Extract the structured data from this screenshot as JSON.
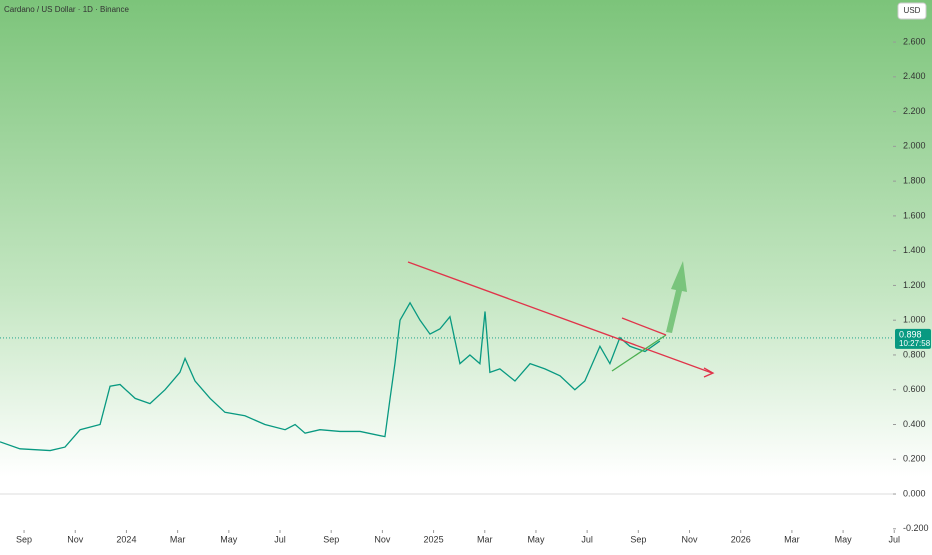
{
  "chart_data": {
    "type": "line",
    "title": "Cardano / US Dollar · 1D · Binance",
    "currency_button": "USD",
    "x": [
      -0.94,
      -0.16,
      1.02,
      1.6,
      2.19,
      2.97,
      3.36,
      3.75,
      4.34,
      4.92,
      5.51,
      6.09,
      6.29,
      6.68,
      7.27,
      7.85,
      8.63,
      9.41,
      10.2,
      10.59,
      10.98,
      11.56,
      12.34,
      13.13,
      14.1,
      14.3,
      14.49,
      14.69,
      15.08,
      15.47,
      15.86,
      16.25,
      16.64,
      17.03,
      17.42,
      17.81,
      18.01,
      18.2,
      18.59,
      19.18,
      19.77,
      20.35,
      20.94,
      21.52,
      21.91,
      22.5,
      22.89,
      23.28,
      23.67,
      24.26,
      24.84
    ],
    "series": [
      {
        "color": "#089981",
        "values": [
          0.3,
          0.26,
          0.25,
          0.27,
          0.37,
          0.4,
          0.62,
          0.63,
          0.55,
          0.52,
          0.6,
          0.7,
          0.78,
          0.65,
          0.55,
          0.47,
          0.45,
          0.4,
          0.37,
          0.4,
          0.35,
          0.37,
          0.36,
          0.36,
          0.33,
          0.55,
          0.75,
          1.0,
          1.1,
          1.0,
          0.92,
          0.95,
          1.02,
          0.75,
          0.8,
          0.75,
          1.05,
          0.7,
          0.72,
          0.65,
          0.75,
          0.72,
          0.68,
          0.6,
          0.65,
          0.85,
          0.75,
          0.9,
          0.85,
          0.82,
          0.88
        ]
      }
    ],
    "last_price": 0.898,
    "countdown": "10:27:58",
    "xlim": [
      -0.94,
      33.95
    ],
    "ylim": [
      -0.207,
      2.842
    ],
    "xticks": [
      {
        "value": 0,
        "label": "Sep"
      },
      {
        "value": 2,
        "label": "Nov"
      },
      {
        "value": 4,
        "label": "2024"
      },
      {
        "value": 6,
        "label": "Mar"
      },
      {
        "value": 8,
        "label": "May"
      },
      {
        "value": 10,
        "label": "Jul"
      },
      {
        "value": 12,
        "label": "Sep"
      },
      {
        "value": 14,
        "label": "Nov"
      },
      {
        "value": 16,
        "label": "2025"
      },
      {
        "value": 18,
        "label": "Mar"
      },
      {
        "value": 20,
        "label": "May"
      },
      {
        "value": 22,
        "label": "Jul"
      },
      {
        "value": 24,
        "label": "Sep"
      },
      {
        "value": 26,
        "label": "Nov"
      },
      {
        "value": 28,
        "label": "2026"
      },
      {
        "value": 30,
        "label": "Mar"
      },
      {
        "value": 32,
        "label": "May"
      },
      {
        "value": 34,
        "label": "Jul"
      }
    ],
    "yticks": [
      {
        "value": -0.2,
        "label": "-0.200"
      },
      {
        "value": 0,
        "label": "0.000"
      },
      {
        "value": 0.2,
        "label": "0.200"
      },
      {
        "value": 0.4,
        "label": "0.400"
      },
      {
        "value": 0.6,
        "label": "0.600"
      },
      {
        "value": 0.8,
        "label": "0.800"
      },
      {
        "value": 1,
        "label": "1.000"
      },
      {
        "value": 1.2,
        "label": "1.200"
      },
      {
        "value": 1.4,
        "label": "1.400"
      },
      {
        "value": 1.6,
        "label": "1.600"
      },
      {
        "value": 1.8,
        "label": "1.800"
      },
      {
        "value": 2,
        "label": "2.000"
      },
      {
        "value": 2.2,
        "label": "2.200"
      },
      {
        "value": 2.4,
        "label": "2.400"
      },
      {
        "value": 2.6,
        "label": "2.600"
      }
    ],
    "grid": false
  }
}
